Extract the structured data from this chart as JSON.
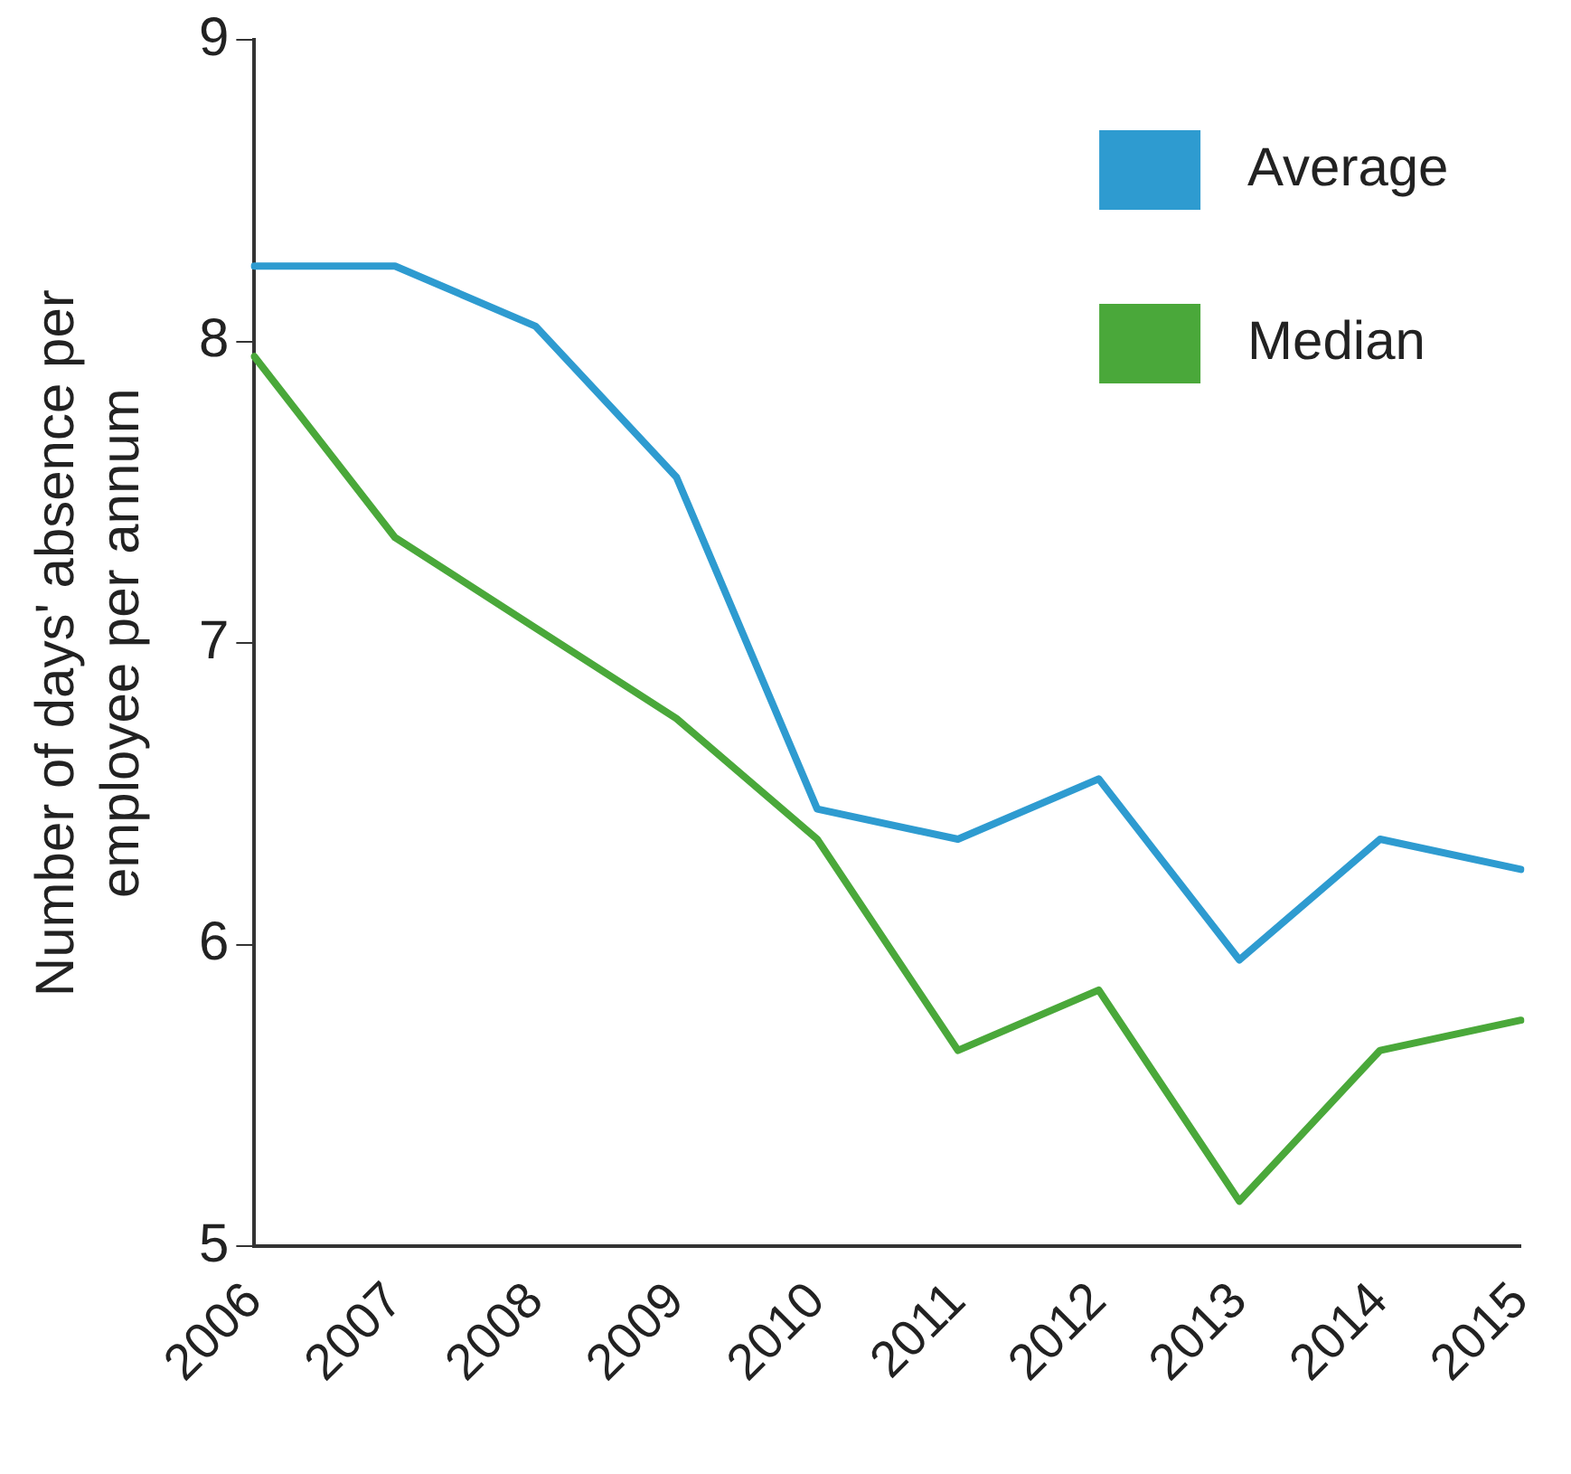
{
  "chart_data": {
    "type": "line",
    "ylabel": "Number of days' absence per employee per annum",
    "categories": [
      "2006",
      "2007",
      "2008",
      "2009",
      "2010",
      "2011",
      "2012",
      "2013",
      "2014",
      "2015"
    ],
    "series": [
      {
        "name": "Average",
        "color": "#2e9bd0",
        "values": [
          8.25,
          8.25,
          8.05,
          7.55,
          6.45,
          6.35,
          6.55,
          5.95,
          6.35,
          6.25
        ]
      },
      {
        "name": "Median",
        "color": "#4aa83a",
        "values": [
          7.95,
          7.35,
          7.05,
          6.75,
          6.35,
          5.65,
          5.85,
          5.15,
          5.65,
          5.75
        ]
      }
    ],
    "ylim": [
      5,
      9
    ],
    "yticks": [
      5,
      6,
      7,
      8,
      9
    ],
    "grid": false,
    "legend": "top right",
    "marker": "none",
    "line_style": "solid"
  }
}
